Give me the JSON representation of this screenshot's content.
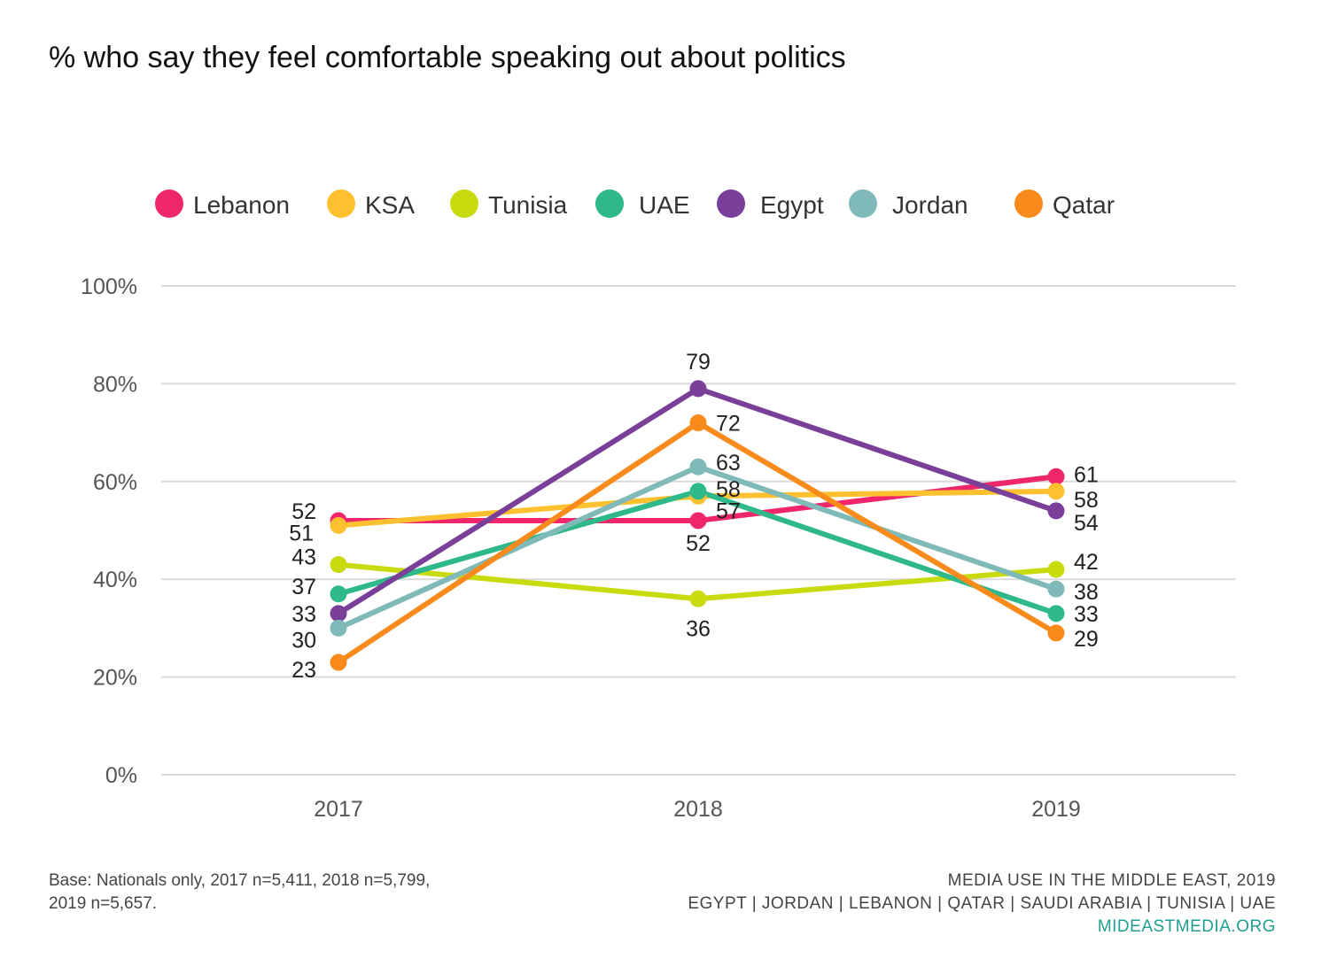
{
  "header": {
    "title": "% who say they feel comfortable speaking out about politics"
  },
  "chart_data": {
    "type": "line",
    "title": "% who say they feel comfortable speaking out about politics",
    "xlabel": "",
    "ylabel": "",
    "x": [
      "2017",
      "2018",
      "2019"
    ],
    "y_ticks": [
      "0%",
      "20%",
      "40%",
      "60%",
      "80%",
      "100%"
    ],
    "ylim": [
      0,
      100
    ],
    "grid": true,
    "legend_position": "top",
    "series": [
      {
        "name": "Lebanon",
        "color": "#f0266c",
        "values": [
          52,
          52,
          61
        ]
      },
      {
        "name": "KSA",
        "color": "#fdc02f",
        "values": [
          51,
          57,
          58
        ]
      },
      {
        "name": "Tunisia",
        "color": "#c9da0f",
        "values": [
          43,
          36,
          42
        ]
      },
      {
        "name": "UAE",
        "color": "#2fb98a",
        "values": [
          37,
          58,
          33
        ]
      },
      {
        "name": "Egypt",
        "color": "#7a3f98",
        "values": [
          33,
          79,
          54
        ]
      },
      {
        "name": "Jordan",
        "color": "#7fb9b8",
        "values": [
          30,
          63,
          38
        ]
      },
      {
        "name": "Qatar",
        "color": "#f98a1c",
        "values": [
          23,
          72,
          29
        ]
      }
    ]
  },
  "footer": {
    "base_line1": "Base: Nationals only, 2017 n=5,411, 2018 n=5,799,",
    "base_line2": "2019 n=5,657.",
    "source_line1": "MEDIA USE IN THE MIDDLE EAST, 2019",
    "source_line2": "EGYPT | JORDAN | LEBANON | QATAR | SAUDI ARABIA | TUNISIA | UAE",
    "website": "MIDEASTMEDIA.ORG"
  }
}
